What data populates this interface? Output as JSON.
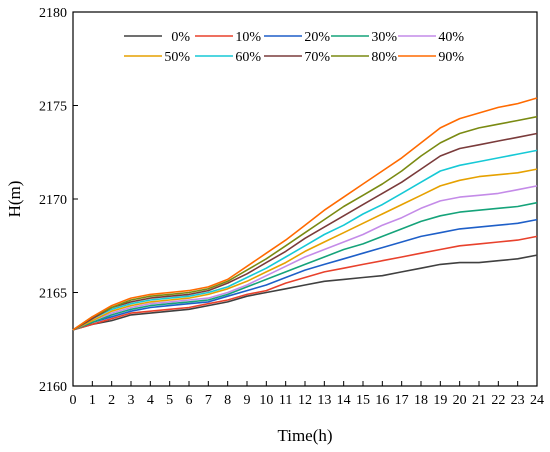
{
  "chart_data": {
    "type": "line",
    "xlabel": "Time(h)",
    "ylabel": "H(m)",
    "xlim": [
      0,
      24
    ],
    "ylim": [
      2160,
      2180
    ],
    "x_ticks": [
      0,
      1,
      2,
      3,
      4,
      5,
      6,
      7,
      8,
      9,
      10,
      11,
      12,
      13,
      14,
      15,
      16,
      17,
      18,
      19,
      20,
      21,
      22,
      23,
      24
    ],
    "y_ticks": [
      2160,
      2165,
      2170,
      2175,
      2180
    ],
    "grid": false,
    "legend": "top",
    "x": [
      0,
      1,
      2,
      3,
      4,
      5,
      6,
      7,
      8,
      9,
      10,
      11,
      12,
      13,
      14,
      15,
      16,
      17,
      18,
      19,
      20,
      21,
      22,
      23,
      24
    ],
    "series": [
      {
        "name": "0%",
        "color": "#404040",
        "values": [
          2163.0,
          2163.3,
          2163.5,
          2163.8,
          2163.9,
          2164.0,
          2164.1,
          2164.3,
          2164.5,
          2164.8,
          2165.0,
          2165.2,
          2165.4,
          2165.6,
          2165.7,
          2165.8,
          2165.9,
          2166.1,
          2166.3,
          2166.5,
          2166.6,
          2166.6,
          2166.7,
          2166.8,
          2167.0
        ]
      },
      {
        "name": "10%",
        "color": "#e8412c",
        "values": [
          2163.0,
          2163.3,
          2163.6,
          2163.9,
          2164.0,
          2164.1,
          2164.2,
          2164.4,
          2164.6,
          2164.9,
          2165.1,
          2165.5,
          2165.8,
          2166.1,
          2166.3,
          2166.5,
          2166.7,
          2166.9,
          2167.1,
          2167.3,
          2167.5,
          2167.6,
          2167.7,
          2167.8,
          2168.0
        ]
      },
      {
        "name": "20%",
        "color": "#1e5fc8",
        "values": [
          2163.0,
          2163.4,
          2163.7,
          2164.0,
          2164.2,
          2164.3,
          2164.4,
          2164.5,
          2164.8,
          2165.1,
          2165.4,
          2165.8,
          2166.2,
          2166.5,
          2166.8,
          2167.1,
          2167.4,
          2167.7,
          2168.0,
          2168.2,
          2168.4,
          2168.5,
          2168.6,
          2168.7,
          2168.9
        ]
      },
      {
        "name": "30%",
        "color": "#15a37a",
        "values": [
          2163.0,
          2163.4,
          2163.8,
          2164.1,
          2164.3,
          2164.4,
          2164.5,
          2164.6,
          2164.9,
          2165.3,
          2165.7,
          2166.1,
          2166.5,
          2166.9,
          2167.3,
          2167.6,
          2168.0,
          2168.4,
          2168.8,
          2169.1,
          2169.3,
          2169.4,
          2169.5,
          2169.6,
          2169.8
        ]
      },
      {
        "name": "40%",
        "color": "#c48be8",
        "values": [
          2163.0,
          2163.5,
          2163.9,
          2164.2,
          2164.4,
          2164.5,
          2164.6,
          2164.7,
          2165.0,
          2165.4,
          2165.9,
          2166.4,
          2166.9,
          2167.3,
          2167.7,
          2168.1,
          2168.6,
          2169.0,
          2169.5,
          2169.9,
          2170.1,
          2170.2,
          2170.3,
          2170.5,
          2170.7
        ]
      },
      {
        "name": "50%",
        "color": "#e6a100",
        "values": [
          2163.0,
          2163.5,
          2164.0,
          2164.3,
          2164.5,
          2164.6,
          2164.7,
          2164.9,
          2165.2,
          2165.6,
          2166.1,
          2166.6,
          2167.2,
          2167.7,
          2168.2,
          2168.7,
          2169.2,
          2169.7,
          2170.2,
          2170.7,
          2171.0,
          2171.2,
          2171.3,
          2171.4,
          2171.6
        ]
      },
      {
        "name": "60%",
        "color": "#16c9d6",
        "values": [
          2163.0,
          2163.6,
          2164.1,
          2164.4,
          2164.6,
          2164.7,
          2164.8,
          2165.0,
          2165.3,
          2165.8,
          2166.3,
          2166.9,
          2167.5,
          2168.1,
          2168.6,
          2169.2,
          2169.7,
          2170.3,
          2170.9,
          2171.5,
          2171.8,
          2172.0,
          2172.2,
          2172.4,
          2172.6
        ]
      },
      {
        "name": "70%",
        "color": "#7a3b3b",
        "values": [
          2163.0,
          2163.6,
          2164.2,
          2164.5,
          2164.7,
          2164.8,
          2164.9,
          2165.1,
          2165.5,
          2166.0,
          2166.6,
          2167.2,
          2167.9,
          2168.5,
          2169.1,
          2169.7,
          2170.3,
          2170.9,
          2171.6,
          2172.3,
          2172.7,
          2172.9,
          2173.1,
          2173.3,
          2173.5
        ]
      },
      {
        "name": "80%",
        "color": "#7a8a12",
        "values": [
          2163.0,
          2163.7,
          2164.2,
          2164.6,
          2164.8,
          2164.9,
          2165.0,
          2165.2,
          2165.6,
          2166.2,
          2166.8,
          2167.5,
          2168.2,
          2168.9,
          2169.6,
          2170.2,
          2170.8,
          2171.5,
          2172.3,
          2173.0,
          2173.5,
          2173.8,
          2174.0,
          2174.2,
          2174.4
        ]
      },
      {
        "name": "90%",
        "color": "#ff6a00",
        "values": [
          2163.0,
          2163.7,
          2164.3,
          2164.7,
          2164.9,
          2165.0,
          2165.1,
          2165.3,
          2165.7,
          2166.4,
          2167.1,
          2167.8,
          2168.6,
          2169.4,
          2170.1,
          2170.8,
          2171.5,
          2172.2,
          2173.0,
          2173.8,
          2174.3,
          2174.6,
          2174.9,
          2175.1,
          2175.4
        ]
      }
    ]
  }
}
